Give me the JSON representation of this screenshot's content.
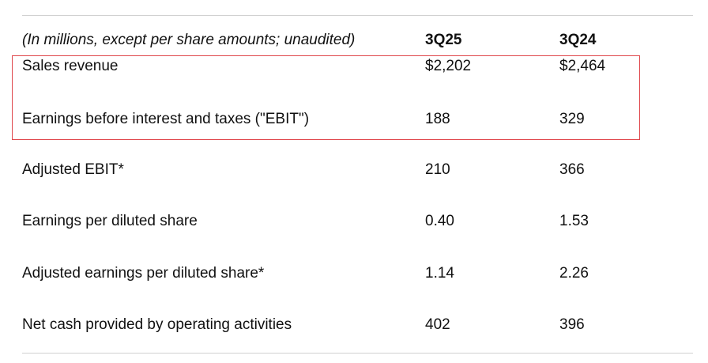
{
  "table": {
    "header": {
      "label": "(In millions, except per share amounts; unaudited)",
      "col_3q25": "3Q25",
      "col_3q24": "3Q24"
    },
    "rows": [
      {
        "label": "Sales revenue",
        "q325": "$2,202",
        "q324": "$2,464",
        "highlighted": true
      },
      {
        "label": "Earnings before interest and taxes (\"EBIT\")",
        "q325": "188",
        "q324": "329",
        "highlighted": true
      },
      {
        "label": "Adjusted EBIT*",
        "q325": "210",
        "q324": "366",
        "highlighted": false
      },
      {
        "label": "Earnings per diluted share",
        "q325": "0.40",
        "q324": "1.53",
        "highlighted": false
      },
      {
        "label": "Adjusted earnings per diluted share*",
        "q325": "1.14",
        "q324": "2.26",
        "highlighted": false
      },
      {
        "label": "Net cash provided by operating activities",
        "q325": "402",
        "q324": "396",
        "highlighted": false
      }
    ]
  },
  "colors": {
    "highlight_border": "#e0474c",
    "rule": "#d0d0d0",
    "text": "#111111"
  }
}
